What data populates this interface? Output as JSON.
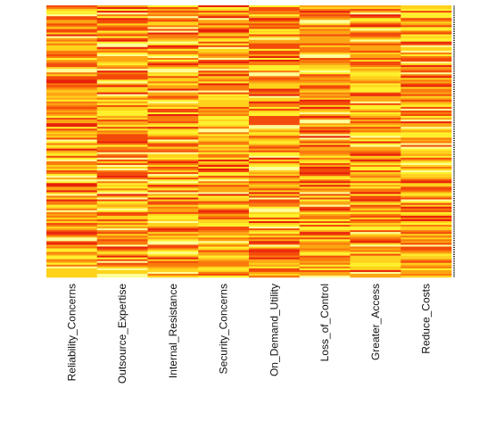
{
  "chart_data": {
    "type": "heatmap",
    "title": "",
    "xlabel": "",
    "ylabel": "",
    "columns": [
      "Reliability_Concerns",
      "Outsource_Expertise",
      "Internal_Resistance",
      "Security_Concerns",
      "On_Demand_Utility",
      "Loss_of_Control",
      "Greater_Access",
      "Reduce_Costs"
    ],
    "row_count": 150,
    "value_range": [
      0,
      1
    ],
    "color_scale": [
      "#E8200A",
      "#F34A09",
      "#FA7A0C",
      "#FDA512",
      "#FFD21C",
      "#FFF02C",
      "#FFFF99"
    ],
    "grid": false,
    "legend": "none"
  }
}
